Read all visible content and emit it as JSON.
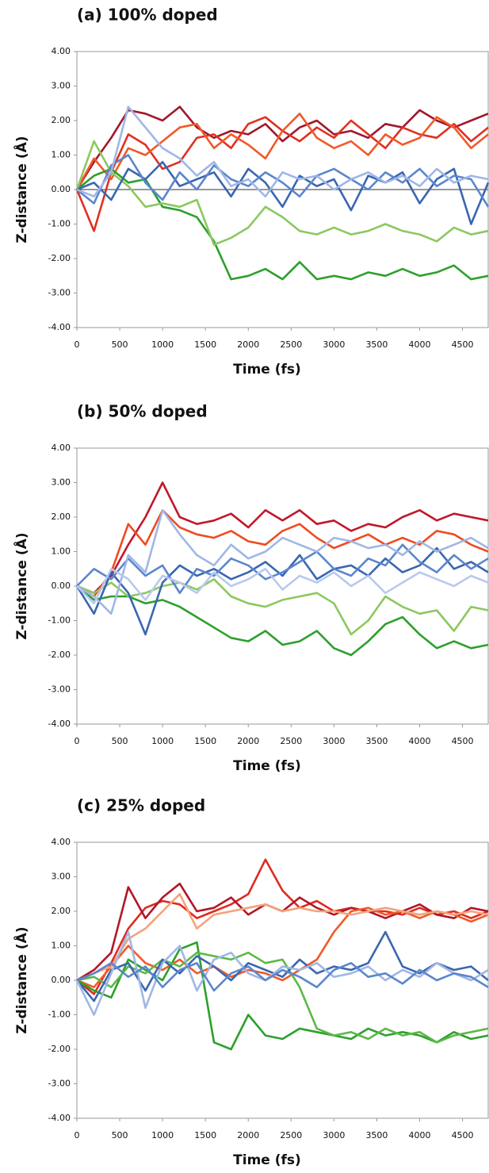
{
  "chart_data": [
    {
      "type": "line",
      "title": "(a) 100% doped",
      "x_label": "Time (fs)",
      "y_label": "Z-distance (Å)",
      "x": [
        0,
        200,
        400,
        600,
        800,
        1000,
        1200,
        1400,
        1600,
        1800,
        2000,
        2200,
        2400,
        2600,
        2800,
        3000,
        3200,
        3400,
        3600,
        3800,
        4000,
        4200,
        4400,
        4600,
        4800
      ],
      "xlim": [
        0,
        4800
      ],
      "xticks": [
        0,
        500,
        1000,
        1500,
        2000,
        2500,
        3000,
        3500,
        4000,
        4500
      ],
      "ylim": [
        -4,
        4
      ],
      "yticks": [
        {
          "value": -4,
          "label": "-4.00"
        },
        {
          "value": -3,
          "label": "-3.00"
        },
        {
          "value": -2,
          "label": "-2.00"
        },
        {
          "value": -1,
          "label": "-1.00"
        },
        {
          "value": 0,
          "label": "0.00"
        },
        {
          "value": 1,
          "label": "1.00"
        },
        {
          "value": 2,
          "label": "2.00"
        },
        {
          "value": 3,
          "label": "3.00"
        },
        {
          "value": 4,
          "label": "4.00"
        }
      ],
      "zero_line": true,
      "series": [
        {
          "color": "#a0182a",
          "values": [
            0,
            0.8,
            1.5,
            2.3,
            2.2,
            2.0,
            2.4,
            1.8,
            1.5,
            1.7,
            1.6,
            1.9,
            1.4,
            1.8,
            2.0,
            1.6,
            1.7,
            1.5,
            1.9,
            1.8,
            2.3,
            2.0,
            1.8,
            2.0,
            2.2
          ]
        },
        {
          "color": "#e03020",
          "values": [
            0,
            -1.2,
            0.5,
            1.6,
            1.3,
            0.6,
            0.8,
            1.5,
            1.6,
            1.2,
            1.9,
            2.1,
            1.7,
            1.4,
            1.8,
            1.5,
            2.0,
            1.6,
            1.2,
            1.8,
            1.6,
            1.5,
            1.9,
            1.4,
            1.8
          ]
        },
        {
          "color": "#f05a28",
          "values": [
            0,
            0.9,
            0.3,
            1.2,
            1.0,
            1.4,
            1.8,
            1.9,
            1.2,
            1.6,
            1.3,
            0.9,
            1.7,
            2.2,
            1.5,
            1.2,
            1.4,
            1.0,
            1.6,
            1.3,
            1.5,
            2.1,
            1.8,
            1.2,
            1.6
          ]
        },
        {
          "color": "#2ca02c",
          "values": [
            0,
            0.4,
            0.6,
            0.2,
            0.3,
            -0.5,
            -0.6,
            -0.8,
            -1.5,
            -2.6,
            -2.5,
            -2.3,
            -2.6,
            -2.1,
            -2.6,
            -2.5,
            -2.6,
            -2.4,
            -2.5,
            -2.3,
            -2.5,
            -2.4,
            -2.2,
            -2.6,
            -2.5
          ]
        },
        {
          "color": "#8cc860",
          "values": [
            0,
            1.4,
            0.5,
            0.1,
            -0.5,
            -0.4,
            -0.5,
            -0.3,
            -1.6,
            -1.4,
            -1.1,
            -0.5,
            -0.8,
            -1.2,
            -1.3,
            -1.1,
            -1.3,
            -1.2,
            -1.0,
            -1.2,
            -1.3,
            -1.5,
            -1.1,
            -1.3,
            -1.2
          ]
        },
        {
          "color": "#3a66b0",
          "values": [
            0,
            0.2,
            -0.3,
            0.6,
            0.3,
            0.8,
            0.1,
            0.3,
            0.5,
            -0.2,
            0.6,
            0.2,
            -0.5,
            0.4,
            0.1,
            0.3,
            -0.6,
            0.4,
            0.2,
            0.5,
            -0.4,
            0.3,
            0.6,
            -1.0,
            0.2
          ]
        },
        {
          "color": "#5b86cc",
          "values": [
            0,
            -0.4,
            0.7,
            1.0,
            0.2,
            -0.3,
            0.5,
            0.0,
            0.7,
            0.3,
            0.1,
            0.5,
            0.2,
            -0.2,
            0.4,
            0.6,
            0.3,
            0.0,
            0.5,
            0.2,
            0.6,
            0.1,
            0.4,
            0.3,
            -0.5
          ]
        },
        {
          "color": "#9fb7e6",
          "values": [
            0,
            -0.2,
            0.5,
            2.4,
            1.8,
            1.2,
            0.9,
            0.4,
            0.8,
            0.1,
            0.3,
            -0.2,
            0.5,
            0.3,
            0.4,
            0.0,
            0.3,
            0.5,
            0.2,
            0.4,
            0.1,
            0.6,
            0.2,
            0.4,
            0.3
          ]
        }
      ]
    },
    {
      "type": "line",
      "title": "(b) 50% doped",
      "x_label": "Time (fs)",
      "y_label": "Z-distance (Å)",
      "x": [
        0,
        200,
        400,
        600,
        800,
        1000,
        1200,
        1400,
        1600,
        1800,
        2000,
        2200,
        2400,
        2600,
        2800,
        3000,
        3200,
        3400,
        3600,
        3800,
        4000,
        4200,
        4400,
        4600,
        4800
      ],
      "xlim": [
        0,
        4800
      ],
      "xticks": [
        0,
        500,
        1000,
        1500,
        2000,
        2500,
        3000,
        3500,
        4000,
        4500
      ],
      "ylim": [
        -4,
        4
      ],
      "yticks": [
        {
          "value": -4,
          "label": "-4.00"
        },
        {
          "value": -3,
          "label": "-3.00"
        },
        {
          "value": -2,
          "label": "-2.00"
        },
        {
          "value": -1,
          "label": "-1.00"
        },
        {
          "value": 0,
          "label": "0.00"
        },
        {
          "value": 1,
          "label": "1.00"
        },
        {
          "value": 2,
          "label": "2.00"
        },
        {
          "value": 3,
          "label": "3.00"
        },
        {
          "value": 4,
          "label": "4.00"
        }
      ],
      "series": [
        {
          "color": "#c0182a",
          "values": [
            0,
            -0.2,
            0.3,
            1.2,
            2.0,
            3.0,
            2.0,
            1.8,
            1.9,
            2.1,
            1.7,
            2.2,
            1.9,
            2.2,
            1.8,
            1.9,
            1.6,
            1.8,
            1.7,
            2.0,
            2.2,
            1.9,
            2.1,
            2.0,
            1.9
          ]
        },
        {
          "color": "#f04a20",
          "values": [
            0,
            -0.3,
            0.4,
            1.8,
            1.2,
            2.2,
            1.7,
            1.5,
            1.4,
            1.6,
            1.3,
            1.2,
            1.6,
            1.8,
            1.4,
            1.1,
            1.3,
            1.5,
            1.2,
            1.4,
            1.2,
            1.6,
            1.5,
            1.2,
            1.0
          ]
        },
        {
          "color": "#2ca02c",
          "values": [
            0,
            -0.4,
            -0.3,
            -0.3,
            -0.5,
            -0.4,
            -0.6,
            -0.9,
            -1.2,
            -1.5,
            -1.6,
            -1.3,
            -1.7,
            -1.6,
            -1.3,
            -1.8,
            -2.0,
            -1.6,
            -1.1,
            -0.9,
            -1.4,
            -1.8,
            -1.6,
            -1.8,
            -1.7
          ]
        },
        {
          "color": "#8cc860",
          "values": [
            0,
            -0.2,
            0.1,
            -0.3,
            -0.2,
            0.0,
            0.1,
            -0.1,
            0.2,
            -0.3,
            -0.5,
            -0.6,
            -0.4,
            -0.3,
            -0.2,
            -0.5,
            -1.4,
            -1.0,
            -0.3,
            -0.6,
            -0.8,
            -0.7,
            -1.3,
            -0.6,
            -0.7
          ]
        },
        {
          "color": "#3a66b0",
          "values": [
            0,
            -0.8,
            0.4,
            -0.2,
            -1.4,
            0.1,
            0.6,
            0.3,
            0.5,
            0.2,
            0.4,
            0.7,
            0.3,
            0.9,
            0.2,
            0.5,
            0.6,
            0.3,
            0.8,
            0.4,
            0.6,
            1.1,
            0.5,
            0.7,
            0.4
          ]
        },
        {
          "color": "#5b86cc",
          "values": [
            0,
            0.5,
            0.2,
            0.8,
            0.3,
            0.6,
            -0.2,
            0.5,
            0.3,
            0.8,
            0.6,
            0.2,
            0.4,
            0.7,
            1.0,
            0.5,
            0.3,
            0.8,
            0.6,
            1.2,
            0.7,
            0.4,
            0.9,
            0.5,
            0.8
          ]
        },
        {
          "color": "#9fb7e6",
          "values": [
            0,
            -0.3,
            -0.8,
            0.9,
            0.4,
            2.2,
            1.5,
            0.9,
            0.6,
            1.2,
            0.8,
            1.0,
            1.4,
            1.2,
            1.0,
            1.4,
            1.3,
            1.1,
            1.2,
            0.9,
            1.3,
            1.0,
            1.2,
            1.4,
            1.1
          ]
        },
        {
          "color": "#b8c9ee",
          "values": [
            0,
            -0.5,
            0.5,
            0.2,
            -0.4,
            0.3,
            0.1,
            -0.2,
            0.4,
            0.0,
            0.2,
            0.5,
            -0.1,
            0.3,
            0.1,
            0.4,
            0.0,
            0.3,
            -0.2,
            0.1,
            0.4,
            0.2,
            0.0,
            0.3,
            0.1
          ]
        }
      ]
    },
    {
      "type": "line",
      "title": "(c) 25% doped",
      "x_label": "Time (fs)",
      "y_label": "Z-distance (Å)",
      "x": [
        0,
        200,
        400,
        600,
        800,
        1000,
        1200,
        1400,
        1600,
        1800,
        2000,
        2200,
        2400,
        2600,
        2800,
        3000,
        3200,
        3400,
        3600,
        3800,
        4000,
        4200,
        4400,
        4600,
        4800
      ],
      "xlim": [
        0,
        4800
      ],
      "xticks": [
        0,
        500,
        1000,
        1500,
        2000,
        2500,
        3000,
        3500,
        4000,
        4500
      ],
      "ylim": [
        -4,
        4
      ],
      "yticks": [
        {
          "value": -4,
          "label": "-4.00"
        },
        {
          "value": -3,
          "label": "-3.00"
        },
        {
          "value": -2,
          "label": "-2.00"
        },
        {
          "value": -1,
          "label": "-1.00"
        },
        {
          "value": 0,
          "label": "0.00"
        },
        {
          "value": 1,
          "label": "1.00"
        },
        {
          "value": 2,
          "label": "2.00"
        },
        {
          "value": 3,
          "label": "3.00"
        },
        {
          "value": 4,
          "label": "4.00"
        }
      ],
      "series": [
        {
          "color": "#e02a20",
          "values": [
            0,
            -0.4,
            0.5,
            1.5,
            2.1,
            2.3,
            2.2,
            1.8,
            2.0,
            2.2,
            2.5,
            3.5,
            2.6,
            2.1,
            2.3,
            2.0,
            2.1,
            2.0,
            2.0,
            1.9,
            2.1,
            1.9,
            2.0,
            1.8,
            2.0
          ]
        },
        {
          "color": "#b01828",
          "values": [
            0,
            0.3,
            0.8,
            2.7,
            1.8,
            2.4,
            2.8,
            2.0,
            2.1,
            2.4,
            1.9,
            2.2,
            2.0,
            2.4,
            2.1,
            1.9,
            2.1,
            2.0,
            1.8,
            2.0,
            2.2,
            1.9,
            1.8,
            2.1,
            2.0
          ]
        },
        {
          "color": "#f05a28",
          "values": [
            0,
            -0.2,
            0.4,
            1.0,
            0.5,
            0.3,
            0.6,
            0.2,
            0.4,
            0.1,
            0.3,
            0.2,
            0.0,
            0.3,
            0.6,
            1.4,
            2.0,
            2.1,
            1.9,
            2.0,
            1.8,
            2.0,
            1.9,
            1.7,
            1.9
          ]
        },
        {
          "color": "#f4a27a",
          "values": [
            0,
            0.2,
            0.4,
            1.2,
            1.5,
            2.0,
            2.5,
            1.5,
            1.9,
            2.0,
            2.1,
            2.2,
            2.0,
            2.1,
            2.0,
            2.0,
            1.9,
            2.0,
            2.1,
            2.0,
            1.9,
            2.0,
            1.9,
            2.0,
            1.9
          ]
        },
        {
          "color": "#2ca02c",
          "values": [
            0,
            -0.3,
            -0.5,
            0.6,
            0.3,
            0.0,
            0.9,
            1.1,
            -1.8,
            -2.0,
            -1.0,
            -1.6,
            -1.7,
            -1.4,
            -1.5,
            -1.6,
            -1.7,
            -1.4,
            -1.6,
            -1.5,
            -1.6,
            -1.8,
            -1.5,
            -1.7,
            -1.6
          ]
        },
        {
          "color": "#5cb848",
          "values": [
            0,
            0.1,
            -0.2,
            0.4,
            0.2,
            0.6,
            0.4,
            0.8,
            0.7,
            0.6,
            0.8,
            0.5,
            0.6,
            -0.2,
            -1.4,
            -1.6,
            -1.5,
            -1.7,
            -1.4,
            -1.6,
            -1.5,
            -1.8,
            -1.6,
            -1.5,
            -1.4
          ]
        },
        {
          "color": "#3a66b0",
          "values": [
            0,
            -0.6,
            0.3,
            0.5,
            -0.3,
            0.6,
            0.2,
            0.7,
            0.4,
            0.0,
            0.5,
            0.3,
            0.1,
            0.6,
            0.2,
            0.4,
            0.3,
            0.5,
            1.4,
            0.4,
            0.2,
            0.5,
            0.3,
            0.4,
            0.0
          ]
        },
        {
          "color": "#9fb7e6",
          "values": [
            0,
            -1.0,
            0.2,
            1.4,
            -0.8,
            0.5,
            1.0,
            -0.3,
            0.6,
            0.8,
            0.2,
            0.0,
            0.4,
            0.3,
            0.5,
            0.1,
            0.2,
            0.4,
            0.0,
            0.3,
            0.1,
            0.5,
            0.2,
            0.0,
            0.3
          ]
        },
        {
          "color": "#5b86cc",
          "values": [
            0,
            0.2,
            0.5,
            0.1,
            0.4,
            -0.2,
            0.3,
            0.5,
            -0.3,
            0.2,
            0.4,
            0.0,
            0.3,
            0.1,
            -0.2,
            0.3,
            0.5,
            0.1,
            0.2,
            -0.1,
            0.3,
            0.0,
            0.2,
            0.1,
            -0.2
          ]
        }
      ]
    }
  ]
}
